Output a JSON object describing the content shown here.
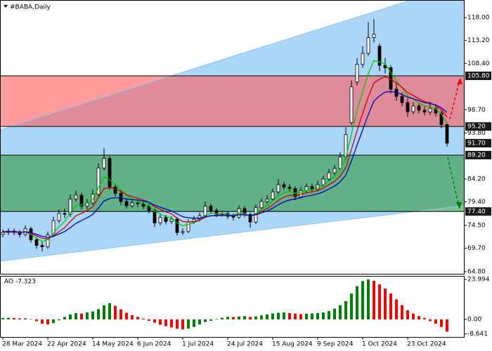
{
  "chart_data": [
    {
      "type": "candlestick",
      "title": "#BABA,Daily",
      "categories": [
        "28 Mar 2024",
        null,
        null,
        null,
        null,
        null,
        null,
        null,
        "22 Apr 2024",
        null,
        null,
        null,
        null,
        null,
        null,
        null,
        "14 May 2024",
        null,
        null,
        null,
        null,
        null,
        null,
        null,
        "6 Jun 2024",
        null,
        null,
        null,
        null,
        null,
        null,
        null,
        "1 Jul 2024",
        null,
        null,
        null,
        null,
        null,
        null,
        null,
        "24 Jul 2024",
        null,
        null,
        null,
        null,
        null,
        null,
        null,
        "15 Aug 2024",
        null,
        null,
        null,
        null,
        null,
        null,
        null,
        "9 Sep 2024",
        null,
        null,
        null,
        null,
        null,
        null,
        null,
        "1 Oct 2024",
        null,
        null,
        null,
        null,
        null,
        null,
        null,
        "23 Oct 2024",
        null,
        null,
        null,
        null,
        null,
        null,
        null
      ],
      "open": [
        72.6,
        73.0,
        73.3,
        73.0,
        72.6,
        73.8,
        71.5,
        70.3,
        70.0,
        72.5,
        75.5,
        77.0,
        76.8,
        80.0,
        80.8,
        78.5,
        79.2,
        81.0,
        86.5,
        88.5,
        82.5,
        81.2,
        79.5,
        78.6,
        79.2,
        79.0,
        78.5,
        77.6,
        75.0,
        76.2,
        75.3,
        75.8,
        73.0,
        73.2,
        75.2,
        75.8,
        76.5,
        78.5,
        77.6,
        76.8,
        77.0,
        76.4,
        76.2,
        78.0,
        76.8,
        75.2,
        78.2,
        79.5,
        80.0,
        81.5,
        83.0,
        82.5,
        82.2,
        80.5,
        81.8,
        82.6,
        82.0,
        83.0,
        84.2,
        85.5,
        86.4,
        88.8,
        96.0,
        104.5,
        108.2,
        110.5,
        113.8,
        112.0,
        108.0,
        107.5,
        103.0,
        101.5,
        100.2,
        98.3,
        99.5,
        98.6,
        98.2,
        99.0,
        98.0,
        95.6
      ],
      "high": [
        73.6,
        73.9,
        73.8,
        73.5,
        74.5,
        74.2,
        72.0,
        71.0,
        73.2,
        76.3,
        77.8,
        78.0,
        81.0,
        81.8,
        81.3,
        80.0,
        82.0,
        87.5,
        90.6,
        89.0,
        83.2,
        81.8,
        80.2,
        79.9,
        79.8,
        79.5,
        79.0,
        78.0,
        76.8,
        76.7,
        76.4,
        76.2,
        73.9,
        75.8,
        76.5,
        77.2,
        79.5,
        79.0,
        78.1,
        77.6,
        77.5,
        77.0,
        78.7,
        78.5,
        77.2,
        78.8,
        80.2,
        80.8,
        82.2,
        84.2,
        83.6,
        83.1,
        82.7,
        82.5,
        83.3,
        83.2,
        83.8,
        84.9,
        86.3,
        87.2,
        89.8,
        95.0,
        104.8,
        109.5,
        112.0,
        117.0,
        117.7,
        112.6,
        109.6,
        108.0,
        104.2,
        102.3,
        101.0,
        100.3,
        100.2,
        99.4,
        100.4,
        99.6,
        98.5,
        96.0
      ],
      "low": [
        72.0,
        72.5,
        72.4,
        72.0,
        72.2,
        70.9,
        69.6,
        69.0,
        69.6,
        72.0,
        75.0,
        76.0,
        76.3,
        79.5,
        77.8,
        77.9,
        78.8,
        80.6,
        86.0,
        82.0,
        80.5,
        78.8,
        78.0,
        78.1,
        78.3,
        77.9,
        77.0,
        74.2,
        74.5,
        74.7,
        74.8,
        72.4,
        72.5,
        72.9,
        74.8,
        75.3,
        76.0,
        77.0,
        76.2,
        76.3,
        75.8,
        75.5,
        75.8,
        76.2,
        74.0,
        74.8,
        77.8,
        79.0,
        79.6,
        81.0,
        81.9,
        81.5,
        79.8,
        80.1,
        81.3,
        81.4,
        81.6,
        82.6,
        83.8,
        85.0,
        86.0,
        88.3,
        95.5,
        103.8,
        107.5,
        110.0,
        112.8,
        106.8,
        106.3,
        102.2,
        100.6,
        99.4,
        97.2,
        97.8,
        97.9,
        97.5,
        97.6,
        97.3,
        94.8,
        91.0
      ],
      "close": [
        73.0,
        73.3,
        73.0,
        72.6,
        73.8,
        71.5,
        70.3,
        70.0,
        72.5,
        75.5,
        77.0,
        76.8,
        80.0,
        80.8,
        78.5,
        79.2,
        81.0,
        86.5,
        88.5,
        82.5,
        81.2,
        79.5,
        78.6,
        79.2,
        79.0,
        78.5,
        77.6,
        75.0,
        76.2,
        75.3,
        75.8,
        73.0,
        73.2,
        75.2,
        75.8,
        76.5,
        78.5,
        77.6,
        76.8,
        77.0,
        76.4,
        76.2,
        78.0,
        76.8,
        75.2,
        78.2,
        79.5,
        80.0,
        81.5,
        83.0,
        82.5,
        82.2,
        80.5,
        81.8,
        82.6,
        82.0,
        83.0,
        84.2,
        85.5,
        86.4,
        88.8,
        93.5,
        103.5,
        108.2,
        110.5,
        113.8,
        114.5,
        108.0,
        107.5,
        103.0,
        101.5,
        100.2,
        98.3,
        99.5,
        98.6,
        98.2,
        99.0,
        98.0,
        95.6,
        91.7
      ],
      "up_color": "#ffffff",
      "down_color": "#000000",
      "series": [
        {
          "color": "#00c800",
          "values": [
            73.0,
            73.1,
            73.1,
            73.0,
            73.2,
            72.6,
            71.8,
            71.1,
            71.5,
            72.8,
            74.3,
            75.3,
            77.2,
            78.6,
            78.8,
            79.2,
            79.8,
            82.4,
            84.6,
            84.0,
            83.1,
            81.9,
            80.7,
            80.0,
            79.5,
            79.1,
            78.6,
            77.4,
            76.9,
            76.3,
            76.1,
            75.0,
            74.4,
            74.7,
            75.1,
            75.6,
            76.6,
            77.0,
            76.9,
            77.0,
            76.8,
            76.6,
            77.1,
            77.0,
            76.4,
            77.0,
            77.8,
            78.6,
            79.6,
            80.7,
            81.3,
            81.6,
            81.2,
            81.4,
            81.8,
            81.9,
            82.3,
            82.9,
            83.8,
            84.7,
            86.1,
            88.6,
            93.6,
            98.5,
            102.5,
            106.3,
            109.0,
            108.7,
            108.3,
            106.5,
            104.8,
            103.3,
            101.6,
            100.9,
            100.1,
            99.5,
            99.3,
            98.9,
            97.8,
            95.8
          ]
        },
        {
          "color": "#d00000",
          "values": [
            73.1,
            73.1,
            73.1,
            73.0,
            73.1,
            72.8,
            72.3,
            71.8,
            71.7,
            72.3,
            73.2,
            74.0,
            75.3,
            76.5,
            77.0,
            77.6,
            78.4,
            80.3,
            82.2,
            82.4,
            82.2,
            81.6,
            80.9,
            80.5,
            80.2,
            79.8,
            79.3,
            78.4,
            77.9,
            77.3,
            76.9,
            76.0,
            75.3,
            75.2,
            75.3,
            75.6,
            76.2,
            76.5,
            76.6,
            76.7,
            76.6,
            76.5,
            76.8,
            76.8,
            76.5,
            76.8,
            77.4,
            78.0,
            78.8,
            79.7,
            80.4,
            80.8,
            80.7,
            81.0,
            81.3,
            81.5,
            81.8,
            82.3,
            83.0,
            83.7,
            84.8,
            86.6,
            90.4,
            94.3,
            97.9,
            101.4,
            104.3,
            105.1,
            105.6,
            105.1,
            104.3,
            103.4,
            102.3,
            101.7,
            101.0,
            100.4,
            100.1,
            99.6,
            98.7,
            97.2
          ]
        },
        {
          "color": "#0000d0",
          "values": [
            73.2,
            73.2,
            73.2,
            73.1,
            73.1,
            73.0,
            72.6,
            72.2,
            72.0,
            72.2,
            72.7,
            73.2,
            74.0,
            74.9,
            75.5,
            76.1,
            76.8,
            78.1,
            79.6,
            80.1,
            80.3,
            80.2,
            80.0,
            79.9,
            79.8,
            79.6,
            79.3,
            78.7,
            78.3,
            77.9,
            77.5,
            76.9,
            76.3,
            76.1,
            76.0,
            76.0,
            76.3,
            76.5,
            76.5,
            76.6,
            76.6,
            76.5,
            76.7,
            76.7,
            76.5,
            76.7,
            77.1,
            77.5,
            78.1,
            78.8,
            79.4,
            79.8,
            80.0,
            80.3,
            80.6,
            80.8,
            81.1,
            81.5,
            82.1,
            82.7,
            83.6,
            85.0,
            88.0,
            91.3,
            94.5,
            97.7,
            100.5,
            101.6,
            102.4,
            102.5,
            102.3,
            101.9,
            101.3,
            101.0,
            100.6,
            100.2,
            100.0,
            99.7,
            99.1,
            98.1
          ]
        }
      ],
      "ylim": [
        64.36,
        121.67
      ],
      "yticks": [
        {
          "value": 118,
          "label": "118.00"
        },
        {
          "value": 113.2,
          "label": "113.20"
        },
        {
          "value": 108.4,
          "label": "108.40"
        },
        {
          "value": 98.7,
          "label": "98.70"
        },
        {
          "value": 93.8,
          "label": "93.80"
        },
        {
          "value": 84.2,
          "label": "84.20"
        },
        {
          "value": 79.4,
          "label": "79.40"
        },
        {
          "value": 74.5,
          "label": "74.50"
        },
        {
          "value": 69.7,
          "label": "69.70"
        },
        {
          "value": 64.8,
          "label": "64.80"
        }
      ],
      "price_tags": [
        {
          "value": 105.8,
          "label": "105.80",
          "line": true
        },
        {
          "value": 95.2,
          "label": "95.20",
          "line": true
        },
        {
          "value": 91.7,
          "label": "91.70",
          "line": false
        },
        {
          "value": 89.2,
          "label": "89.20",
          "line": true
        },
        {
          "value": 77.4,
          "label": "77.40",
          "line": true
        }
      ],
      "tag_color": "#1a1a1a",
      "zones": [
        {
          "from": 105.8,
          "to": 95.2,
          "color": "#ff5a5a"
        },
        {
          "from": 89.2,
          "to": 77.4,
          "color": "#2e963a"
        }
      ]
    },
    {
      "type": "bar",
      "title": "AO -7.323",
      "values": [
        0.8,
        1.0,
        0.9,
        0.6,
        0.7,
        0.2,
        -1.0,
        -2.5,
        -3.0,
        -2.2,
        -0.5,
        1.5,
        3.0,
        3.8,
        3.5,
        4.2,
        4.8,
        6.2,
        8.5,
        9.8,
        8.2,
        6.0,
        4.0,
        2.5,
        1.5,
        0.5,
        -0.8,
        -2.0,
        -3.2,
        -4.0,
        -4.8,
        -5.6,
        -6.0,
        -5.5,
        -4.5,
        -3.0,
        -1.5,
        -0.8,
        0.3,
        1.0,
        1.6,
        1.4,
        1.8,
        2.0,
        1.5,
        1.8,
        2.4,
        3.0,
        3.6,
        4.0,
        4.2,
        3.8,
        3.5,
        3.2,
        3.4,
        3.6,
        3.8,
        4.2,
        5.0,
        6.5,
        8.5,
        11.0,
        15.5,
        20.0,
        23.0,
        23.994,
        23.2,
        21.0,
        18.5,
        15.5,
        12.0,
        8.5,
        5.5,
        3.5,
        2.0,
        0.8,
        -1.0,
        -2.5,
        -4.5,
        -7.323
      ],
      "up_color": "#008000",
      "down_color": "#ff0000",
      "ylim": [
        -10.5,
        26.1
      ],
      "yticks": [
        {
          "value": 23.994,
          "label": "23.994"
        },
        {
          "value": 0,
          "label": "0.00"
        },
        {
          "value": -8.641,
          "label": "-8.641"
        }
      ]
    }
  ]
}
